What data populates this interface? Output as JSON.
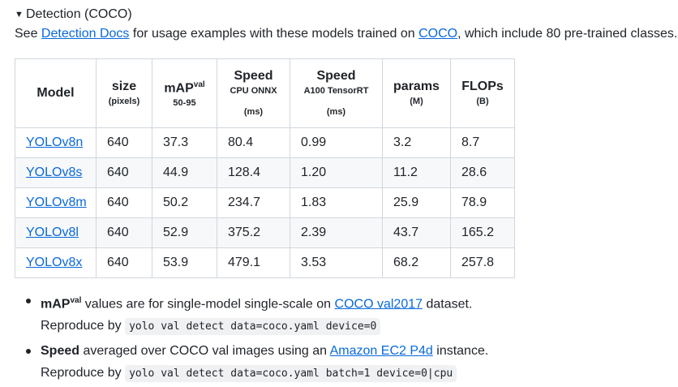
{
  "summary": {
    "arrow": "▼",
    "title": "Detection (COCO)"
  },
  "description": {
    "see": "See ",
    "docs_link": "Detection Docs",
    "middle": " for usage examples with these models trained on ",
    "coco_link": "COCO",
    "end": ", which include 80 pre-trained classes."
  },
  "table": {
    "headers": {
      "model": "Model",
      "size": "size",
      "size_sub": "(pixels)",
      "map": "mAP",
      "map_sup": "val",
      "map_sub": "50-95",
      "speed_cpu": "Speed",
      "speed_cpu_sub1": "CPU ONNX",
      "speed_cpu_sub2": "(ms)",
      "speed_gpu": "Speed",
      "speed_gpu_sub1": "A100 TensorRT",
      "speed_gpu_sub2": "(ms)",
      "params": "params",
      "params_sub": "(M)",
      "flops": "FLOPs",
      "flops_sub": "(B)"
    },
    "rows": [
      {
        "model": "YOLOv8n",
        "size": "640",
        "map": "37.3",
        "cpu": "80.4",
        "gpu": "0.99",
        "params": "3.2",
        "flops": "8.7"
      },
      {
        "model": "YOLOv8s",
        "size": "640",
        "map": "44.9",
        "cpu": "128.4",
        "gpu": "1.20",
        "params": "11.2",
        "flops": "28.6"
      },
      {
        "model": "YOLOv8m",
        "size": "640",
        "map": "50.2",
        "cpu": "234.7",
        "gpu": "1.83",
        "params": "25.9",
        "flops": "78.9"
      },
      {
        "model": "YOLOv8l",
        "size": "640",
        "map": "52.9",
        "cpu": "375.2",
        "gpu": "2.39",
        "params": "43.7",
        "flops": "165.2"
      },
      {
        "model": "YOLOv8x",
        "size": "640",
        "map": "53.9",
        "cpu": "479.1",
        "gpu": "3.53",
        "params": "68.2",
        "flops": "257.8"
      }
    ]
  },
  "notes": [
    {
      "bold": "mAP",
      "sup": "val",
      "text": " values are for single-model single-scale on ",
      "link": "COCO val2017",
      "end": " dataset.",
      "reproduce": "Reproduce by ",
      "code": "yolo val detect data=coco.yaml device=0"
    },
    {
      "bold": "Speed",
      "text": " averaged over COCO val images using an ",
      "link": "Amazon EC2 P4d",
      "end": " instance.",
      "reproduce": "Reproduce by ",
      "code": "yolo val detect data=coco.yaml batch=1 device=0|cpu"
    }
  ]
}
